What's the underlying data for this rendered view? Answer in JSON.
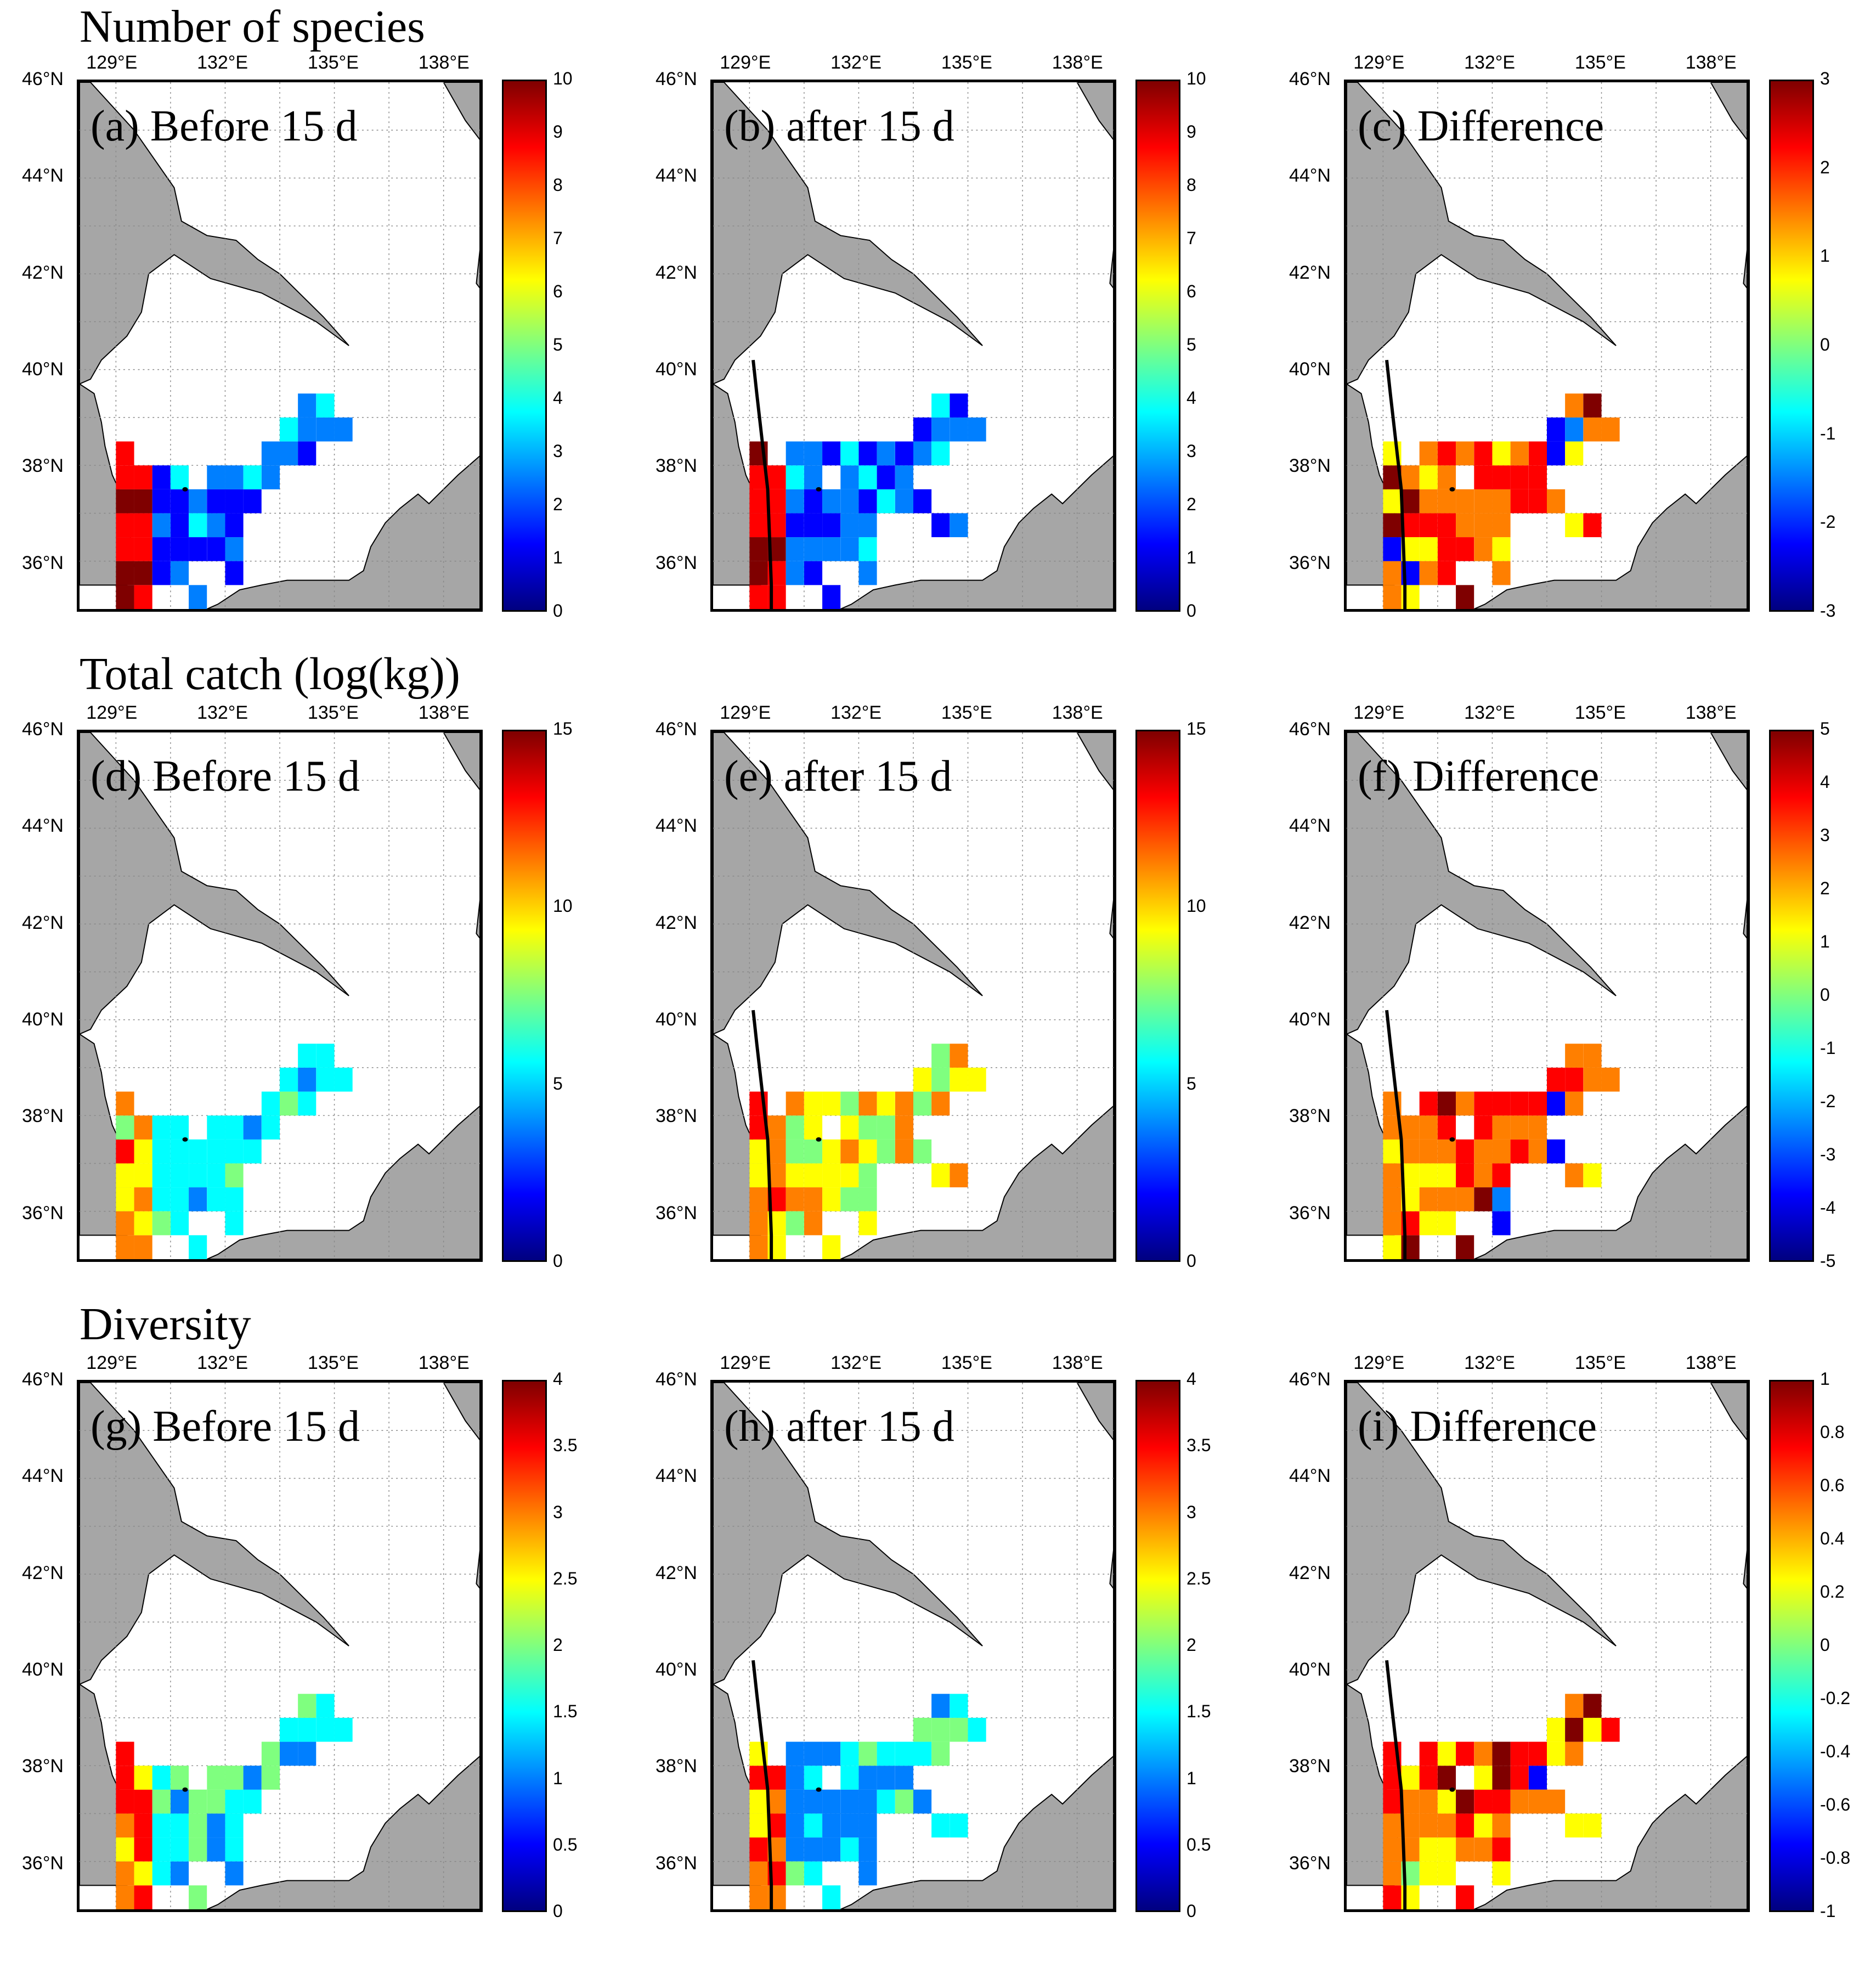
{
  "figure": {
    "row_titles": [
      "Number of species",
      "Total catch (log(kg))",
      "Diversity"
    ],
    "lon_labels": [
      "129°E",
      "132°E",
      "135°E",
      "138°E"
    ],
    "lat_labels": [
      "46°N",
      "44°N",
      "42°N",
      "40°N",
      "38°N",
      "36°N"
    ],
    "colormap": [
      "#00007f",
      "#0000ff",
      "#007fff",
      "#00ffff",
      "#7fff7f",
      "#ffff00",
      "#ff7f00",
      "#ff0000",
      "#7f0000"
    ],
    "land_color": "#a6a6a6",
    "sea_color": "#ffffff",
    "border_line": "black line along the Korean east coast (after / difference panels)"
  },
  "panels": [
    {
      "label": "(a) Before 15 d",
      "row": 0,
      "col": 0,
      "ticks": [
        "10",
        "9",
        "8",
        "7",
        "6",
        "5",
        "4",
        "3",
        "2",
        "1",
        "0"
      ],
      "show_line": false,
      "variable": "species",
      "period": "before"
    },
    {
      "label": "(b) after 15 d",
      "row": 0,
      "col": 1,
      "ticks": [
        "10",
        "9",
        "8",
        "7",
        "6",
        "5",
        "4",
        "3",
        "2",
        "1",
        "0"
      ],
      "show_line": true,
      "variable": "species",
      "period": "after"
    },
    {
      "label": "(c) Difference",
      "row": 0,
      "col": 2,
      "ticks": [
        "3",
        "2",
        "1",
        "0",
        "-1",
        "-2",
        "-3"
      ],
      "show_line": true,
      "variable": "species",
      "period": "difference"
    },
    {
      "label": "(d) Before 15 d",
      "row": 1,
      "col": 0,
      "ticks": [
        "15",
        "10",
        "5",
        "0"
      ],
      "show_line": false,
      "variable": "catch",
      "period": "before"
    },
    {
      "label": "(e) after 15 d",
      "row": 1,
      "col": 1,
      "ticks": [
        "15",
        "10",
        "5",
        "0"
      ],
      "show_line": true,
      "variable": "catch",
      "period": "after"
    },
    {
      "label": "(f) Difference",
      "row": 1,
      "col": 2,
      "ticks": [
        "5",
        "4",
        "3",
        "2",
        "1",
        "0",
        "-1",
        "-2",
        "-3",
        "-4",
        "-5"
      ],
      "show_line": true,
      "variable": "catch",
      "period": "difference"
    },
    {
      "label": "(g) Before 15 d",
      "row": 2,
      "col": 0,
      "ticks": [
        "4",
        "3.5",
        "3",
        "2.5",
        "2",
        "1.5",
        "1",
        "0.5",
        "0"
      ],
      "show_line": false,
      "variable": "diversity",
      "period": "before"
    },
    {
      "label": "(h) after 15 d",
      "row": 2,
      "col": 1,
      "ticks": [
        "4",
        "3.5",
        "3",
        "2.5",
        "2",
        "1.5",
        "1",
        "0.5",
        "0"
      ],
      "show_line": true,
      "variable": "diversity",
      "period": "after"
    },
    {
      "label": "(i) Difference",
      "row": 2,
      "col": 2,
      "ticks": [
        "1",
        "0.8",
        "0.6",
        "0.4",
        "0.2",
        "0",
        "-0.2",
        "-0.4",
        "-0.6",
        "-0.8",
        "-1"
      ],
      "show_line": true,
      "variable": "diversity",
      "period": "difference"
    }
  ]
}
